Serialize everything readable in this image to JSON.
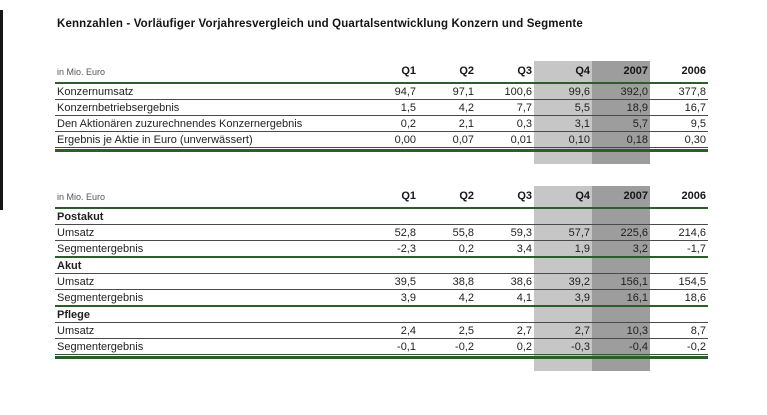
{
  "title": "Kennzahlen - Vorläufiger Vorjahresvergleich und Quartalsentwicklung Konzern und Segmente",
  "unit_label": "in Mio. Euro",
  "columns": [
    "Q1",
    "Q2",
    "Q3",
    "Q4",
    "2007",
    "2006"
  ],
  "colors": {
    "highlight_q4": "#c6c6c6",
    "highlight_2007": "#9d9d9d",
    "rule_green": "#2d5c2d"
  },
  "table1": {
    "rows": [
      {
        "label": "Konzernumsatz",
        "values": [
          "94,7",
          "97,1",
          "100,6",
          "99,6",
          "392,0",
          "377,8"
        ]
      },
      {
        "label": "Konzernbetriebsergebnis",
        "values": [
          "1,5",
          "4,2",
          "7,7",
          "5,5",
          "18,9",
          "16,7"
        ]
      },
      {
        "label": "Den Aktionären zuzurechnendes Konzernergebnis",
        "values": [
          "0,2",
          "2,1",
          "0,3",
          "3,1",
          "5,7",
          "9,5"
        ]
      },
      {
        "label": "Ergebnis je Aktie in Euro (unverwässert)",
        "values": [
          "0,00",
          "0,07",
          "0,01",
          "0,10",
          "0,18",
          "0,30"
        ]
      }
    ]
  },
  "table2": {
    "rows": [
      {
        "type": "section",
        "label": "Postakut"
      },
      {
        "type": "data",
        "label": "Umsatz",
        "values": [
          "52,8",
          "55,8",
          "59,3",
          "57,7",
          "225,6",
          "214,6"
        ]
      },
      {
        "type": "data",
        "label": "Segmentergebnis",
        "values": [
          "-2,3",
          "0,2",
          "3,4",
          "1,9",
          "3,2",
          "-1,7"
        ]
      },
      {
        "type": "section",
        "label": "Akut"
      },
      {
        "type": "data",
        "label": "Umsatz",
        "values": [
          "39,5",
          "38,8",
          "38,6",
          "39,2",
          "156,1",
          "154,5"
        ]
      },
      {
        "type": "data",
        "label": "Segmentergebnis",
        "values": [
          "3,9",
          "4,2",
          "4,1",
          "3,9",
          "16,1",
          "18,6"
        ]
      },
      {
        "type": "section",
        "label": "Pflege"
      },
      {
        "type": "data",
        "label": "Umsatz",
        "values": [
          "2,4",
          "2,5",
          "2,7",
          "2,7",
          "10,3",
          "8,7"
        ]
      },
      {
        "type": "data",
        "label": "Segmentergebnis",
        "values": [
          "-0,1",
          "-0,2",
          "0,2",
          "-0,3",
          "-0,4",
          "-0,2"
        ]
      }
    ]
  }
}
